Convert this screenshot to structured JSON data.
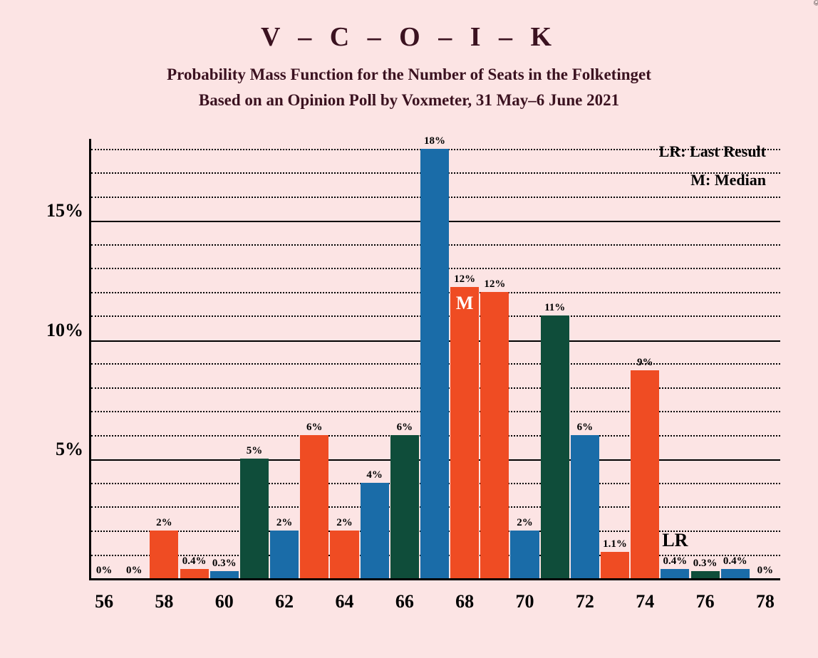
{
  "title": "V – C – O – I – K",
  "subtitle1": "Probability Mass Function for the Number of Seats in the Folketinget",
  "subtitle2": "Based on an Opinion Poll by Voxmeter, 31 May–6 June 2021",
  "copyright": "© 2021 Filip van Laenen",
  "legend": {
    "lr": "LR: Last Result",
    "m": "M: Median"
  },
  "lr_marker": "LR",
  "median_marker": "M",
  "chart": {
    "background_color": "#fce4e4",
    "colors": {
      "blue": "#1a6ca8",
      "orange": "#ef4c23",
      "green": "#0f4d3a"
    },
    "y_max": 18.5,
    "y_major_ticks": [
      {
        "v": 5,
        "label": "5%"
      },
      {
        "v": 10,
        "label": "10%"
      },
      {
        "v": 15,
        "label": "15%"
      }
    ],
    "y_minor_step": 1,
    "x_ticks": [
      56,
      58,
      60,
      62,
      64,
      66,
      68,
      70,
      72,
      74,
      76,
      78
    ],
    "x_min": 55.5,
    "x_max": 78.5,
    "bar_width_units": 0.95,
    "lr_x": 75,
    "bars": [
      {
        "x": 56,
        "v": 0,
        "label": "0%",
        "c": "blue"
      },
      {
        "x": 57,
        "v": 0,
        "label": "0%",
        "c": "orange"
      },
      {
        "x": 58,
        "v": 2,
        "label": "2%",
        "c": "orange"
      },
      {
        "x": 59,
        "v": 0.4,
        "label": "0.4%",
        "c": "orange"
      },
      {
        "x": 60,
        "v": 0.3,
        "label": "0.3%",
        "c": "blue"
      },
      {
        "x": 61,
        "v": 5,
        "label": "5%",
        "c": "green"
      },
      {
        "x": 62,
        "v": 2,
        "label": "2%",
        "c": "blue"
      },
      {
        "x": 63,
        "v": 6,
        "label": "6%",
        "c": "orange"
      },
      {
        "x": 64,
        "v": 2,
        "label": "2%",
        "c": "orange"
      },
      {
        "x": 65,
        "v": 4,
        "label": "4%",
        "c": "blue"
      },
      {
        "x": 66,
        "v": 6,
        "label": "6%",
        "c": "green"
      },
      {
        "x": 67,
        "v": 18,
        "label": "18%",
        "c": "blue"
      },
      {
        "x": 68,
        "v": 12.2,
        "label": "12%",
        "c": "orange",
        "median": true
      },
      {
        "x": 69,
        "v": 12,
        "label": "12%",
        "c": "orange"
      },
      {
        "x": 70,
        "v": 2,
        "label": "2%",
        "c": "blue"
      },
      {
        "x": 71,
        "v": 11,
        "label": "11%",
        "c": "green"
      },
      {
        "x": 72,
        "v": 6,
        "label": "6%",
        "c": "blue"
      },
      {
        "x": 73,
        "v": 1.1,
        "label": "1.1%",
        "c": "orange"
      },
      {
        "x": 74,
        "v": 8.7,
        "label": "9%",
        "c": "orange"
      },
      {
        "x": 75,
        "v": 0.4,
        "label": "0.4%",
        "c": "blue"
      },
      {
        "x": 76,
        "v": 0.3,
        "label": "0.3%",
        "c": "green"
      },
      {
        "x": 77,
        "v": 0.4,
        "label": "0.4%",
        "c": "blue"
      },
      {
        "x": 78,
        "v": 0,
        "label": "0%",
        "c": "orange"
      }
    ]
  }
}
